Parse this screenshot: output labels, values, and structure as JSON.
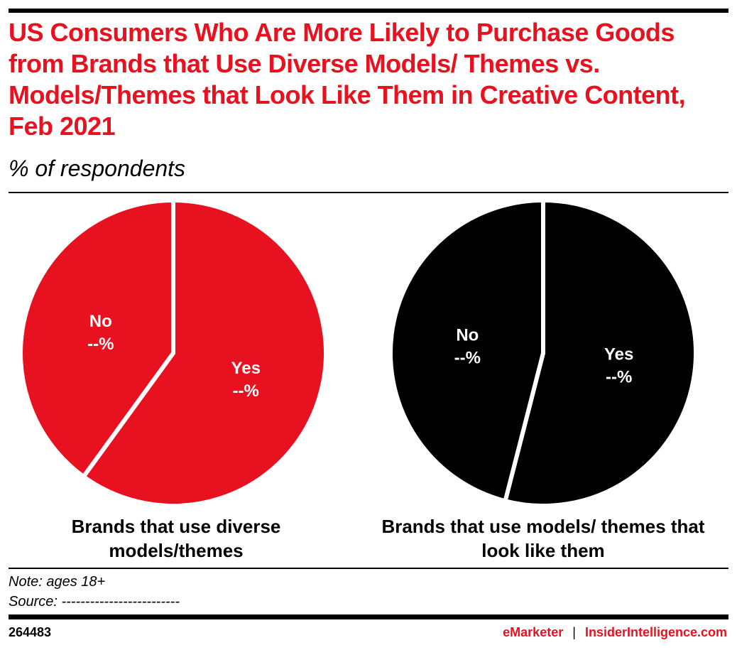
{
  "chart_data": [
    {
      "type": "pie",
      "title": "Brands that use diverse models/themes",
      "categories": [
        "Yes",
        "No"
      ],
      "values": [
        60,
        40
      ],
      "value_labels": [
        "--%",
        "--%"
      ],
      "color": "#e8111f"
    },
    {
      "type": "pie",
      "title": "Brands that use models/ themes that look like them",
      "categories": [
        "Yes",
        "No"
      ],
      "values": [
        54,
        46
      ],
      "value_labels": [
        "--%",
        "--%"
      ],
      "color": "#000000"
    }
  ],
  "header": {
    "title": "US Consumers Who Are More Likely to Purchase Goods from Brands that Use Diverse Models/ Themes vs. Models/Themes that Look Like Them in Creative Content, Feb 2021",
    "subtitle": "% of respondents"
  },
  "footer": {
    "note": "Note: ages 18+",
    "source": "Source: -------------------------",
    "chart_id": "264483",
    "brand1": "eMarketer",
    "separator": "|",
    "brand2": "InsiderIntelligence.com",
    "accent": "#e8111f"
  }
}
